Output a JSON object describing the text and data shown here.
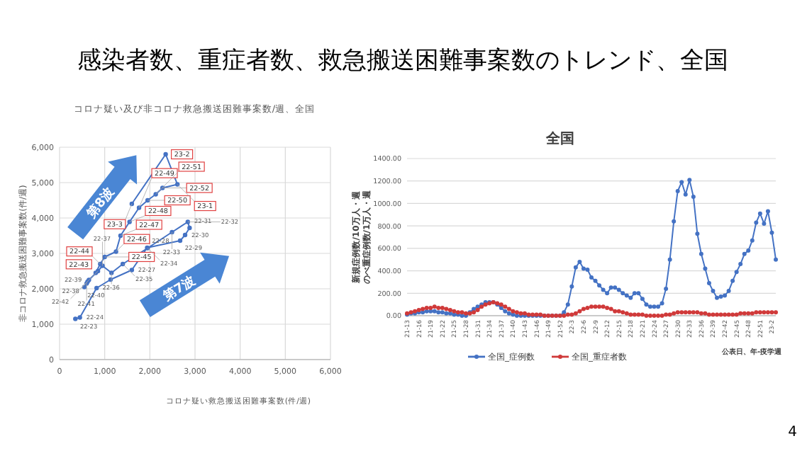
{
  "chart_data": [
    {
      "type": "line",
      "title": "コロナ疑い及び非コロナ救急搬送困難事案数/週、全国",
      "xlabel": "コロナ疑い救急搬送困難事案数(件/週)",
      "ylabel": "非コロナ救急搬送困難事案数(件/週)",
      "xlim": [
        0,
        6000
      ],
      "ylim": [
        0,
        6000
      ],
      "grid": true,
      "marker": "circle",
      "xticks": [
        0,
        {
          "value": 1000,
          "label": "1,000"
        },
        {
          "value": 2000,
          "label": "2,000"
        },
        {
          "value": 3000,
          "label": "3,000"
        },
        {
          "value": 4000,
          "label": "4,000"
        },
        {
          "value": 5000,
          "label": "5,000"
        },
        {
          "value": 6000,
          "label": "6,000"
        }
      ],
      "yticks": [
        0,
        {
          "value": 1000,
          "label": "1,000"
        },
        {
          "value": 2000,
          "label": "2,000"
        },
        {
          "value": 3000,
          "label": "3,000"
        },
        {
          "value": 4000,
          "label": "4,000"
        },
        {
          "value": 5000,
          "label": "5,000"
        },
        {
          "value": 6000,
          "label": "6,000"
        }
      ],
      "annotations": [
        "感染者数、重症者数、救急搬送困難事案数のトレンド、全国",
        "第8波",
        "第7波"
      ],
      "series": [
        {
          "color": "#4472c4",
          "x": [
            350,
            450,
            820,
            1130,
            1600,
            1940,
            2670,
            2780,
            2880,
            2840,
            2490,
            1950,
            1400,
            1150,
            950,
            850,
            650,
            550,
            600,
            620
          ],
          "values": [
            1150,
            1190,
            2020,
            2260,
            2530,
            3160,
            3360,
            3520,
            3720,
            3890,
            3600,
            3150,
            2700,
            2450,
            2650,
            2500,
            2250,
            2050,
            2150,
            2200
          ],
          "value_labels": [
            "22-23",
            "22-24",
            null,
            null,
            "22-27",
            "22-28",
            "22-29",
            "22-30",
            "22-31",
            "22-32",
            "22-33",
            "22-34",
            "22-35",
            "22-36",
            "22-37",
            "22-38",
            "22-39",
            "22-40",
            "22-41",
            "22-42"
          ]
        },
        {
          "color": "#4472c4",
          "x": [
            800,
            900,
            1000,
            1250,
            1350,
            1550,
            1760,
            1950,
            2130,
            2280,
            2610,
            2350,
            1600
          ],
          "values": [
            2450,
            2700,
            2900,
            3050,
            3500,
            3890,
            4290,
            4500,
            4670,
            4850,
            4950,
            5800,
            4400
          ],
          "value_labels": [
            "22-43",
            "22-44",
            "22-45",
            "22-46",
            "22-47",
            "22-48",
            "22-49",
            "22-50",
            "22-51",
            "22-52",
            "23-1",
            "23-2",
            "23-3"
          ]
        }
      ]
    },
    {
      "type": "line",
      "title": "全国",
      "xlabel": "公表日、年-疫学週",
      "ylabel": "新規症例数/10万人・週のべ重症例数/1万人・週",
      "ylim": [
        0,
        1400
      ],
      "grid": "y",
      "legend": "bottom",
      "marker": "circle",
      "yticks": [
        {
          "value": 0,
          "label": "0.00"
        },
        {
          "value": 200,
          "label": "200.00"
        },
        {
          "value": 400,
          "label": "400.00"
        },
        {
          "value": 600,
          "label": "600.00"
        },
        {
          "value": 800,
          "label": "800.00"
        },
        {
          "value": 1000,
          "label": "1000.00"
        },
        {
          "value": 1200,
          "label": "1200.00"
        },
        {
          "value": 1400,
          "label": "1400.00"
        }
      ],
      "annotations": [
        "4"
      ],
      "categories": [
        "21-13",
        null,
        null,
        "21-16",
        null,
        null,
        "21-19",
        null,
        null,
        "21-22",
        null,
        null,
        "21-25",
        null,
        null,
        "21-28",
        null,
        null,
        "21-31",
        null,
        null,
        "21-34",
        null,
        null,
        "21-37",
        null,
        null,
        "21-40",
        null,
        null,
        "21-43",
        null,
        null,
        "21-46",
        null,
        null,
        "21-49",
        null,
        null,
        "21-52",
        null,
        null,
        "22-3",
        null,
        null,
        "22-6",
        null,
        null,
        "22-9",
        null,
        null,
        "22-12",
        null,
        null,
        "22-15",
        null,
        null,
        "22-18",
        null,
        null,
        "22-21",
        null,
        null,
        "22-24",
        null,
        null,
        "22-27",
        null,
        null,
        "22-30",
        null,
        null,
        "22-33",
        null,
        null,
        "22-36",
        null,
        null,
        "22-39",
        null,
        null,
        "22-42",
        null,
        null,
        "22-45",
        null,
        null,
        "22-48",
        null,
        null,
        "22-51",
        null,
        null,
        "23-2",
        null
      ],
      "series": [
        {
          "name": "全国_症例数",
          "color": "#4472c4",
          "values": [
            10,
            20,
            20,
            30,
            30,
            40,
            40,
            40,
            30,
            30,
            20,
            20,
            10,
            10,
            0,
            0,
            30,
            60,
            80,
            100,
            120,
            120,
            120,
            100,
            70,
            40,
            20,
            10,
            0,
            0,
            0,
            0,
            0,
            0,
            0,
            0,
            0,
            0,
            0,
            0,
            30,
            100,
            260,
            430,
            480,
            420,
            410,
            340,
            310,
            270,
            230,
            200,
            250,
            250,
            230,
            200,
            180,
            160,
            200,
            200,
            150,
            100,
            80,
            80,
            80,
            110,
            240,
            500,
            840,
            1110,
            1190,
            1080,
            1210,
            1060,
            730,
            550,
            420,
            290,
            220,
            160,
            170,
            180,
            220,
            310,
            390,
            460,
            550,
            580,
            670,
            830,
            910,
            820,
            930,
            740,
            500
          ]
        },
        {
          "name": "全国_重症者数",
          "color": "#d03a3a",
          "values": [
            20,
            30,
            40,
            50,
            60,
            70,
            70,
            80,
            70,
            70,
            60,
            50,
            40,
            30,
            30,
            20,
            20,
            30,
            50,
            80,
            100,
            110,
            120,
            110,
            100,
            80,
            60,
            40,
            30,
            20,
            20,
            10,
            10,
            10,
            10,
            0,
            0,
            0,
            0,
            0,
            0,
            10,
            10,
            20,
            40,
            60,
            70,
            80,
            80,
            80,
            80,
            70,
            60,
            40,
            40,
            30,
            20,
            10,
            10,
            10,
            10,
            0,
            0,
            0,
            0,
            0,
            10,
            10,
            20,
            30,
            30,
            30,
            30,
            30,
            30,
            20,
            20,
            10,
            10,
            10,
            10,
            10,
            10,
            10,
            10,
            20,
            20,
            20,
            20,
            30,
            30,
            30,
            30,
            30,
            30
          ]
        }
      ]
    }
  ]
}
